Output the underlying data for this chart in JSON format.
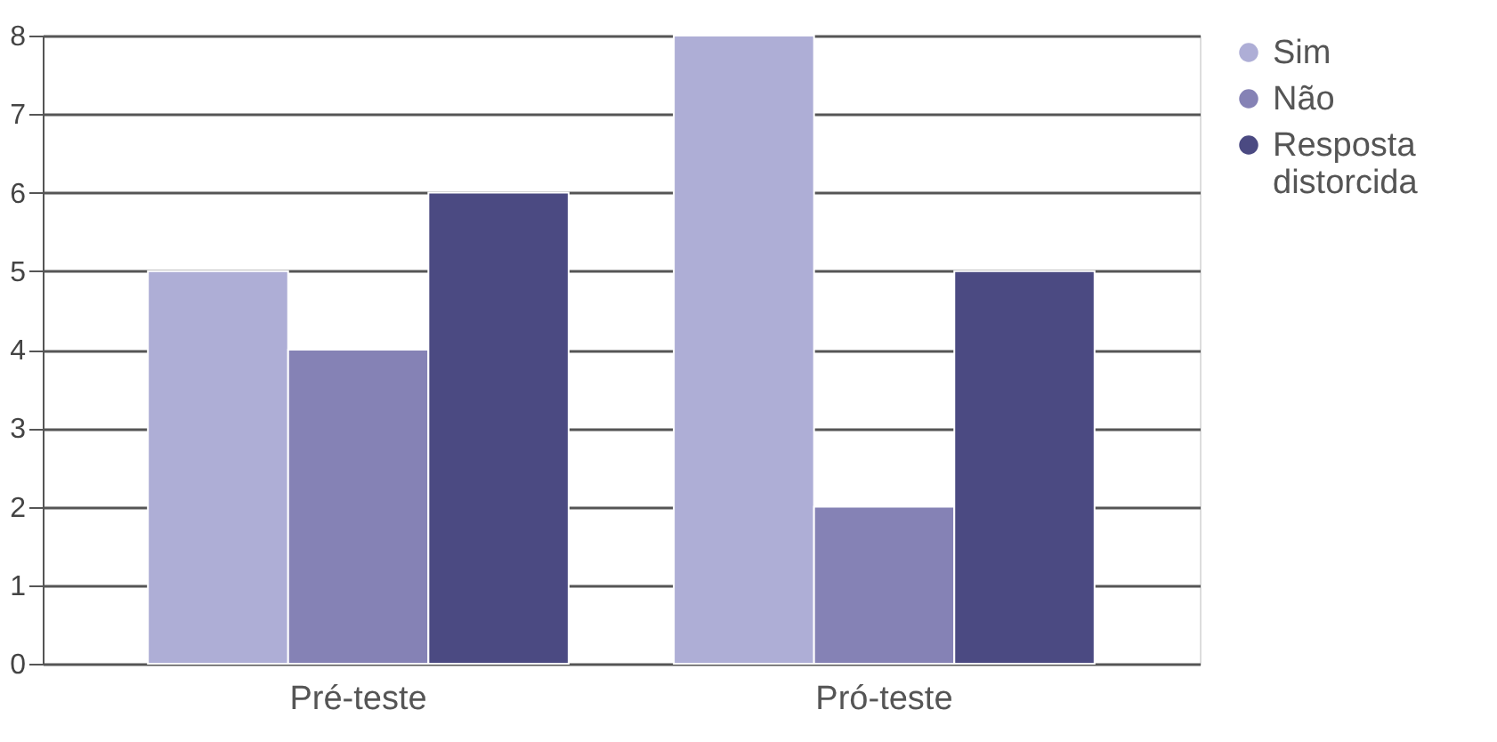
{
  "chart_data": {
    "type": "bar",
    "categories": [
      "Pré-teste",
      "Pró-teste"
    ],
    "series": [
      {
        "name": "Sim",
        "color": "#aeaed6",
        "values": [
          5,
          8
        ]
      },
      {
        "name": "Não",
        "color": "#8582b5",
        "values": [
          4,
          2
        ]
      },
      {
        "name": "Resposta distorcida",
        "color": "#4b4a82",
        "values": [
          6,
          5
        ]
      }
    ],
    "ylim": [
      0,
      8
    ],
    "yticks": [
      0,
      1,
      2,
      3,
      4,
      5,
      6,
      7,
      8
    ],
    "grid": "y",
    "legend": "right"
  }
}
